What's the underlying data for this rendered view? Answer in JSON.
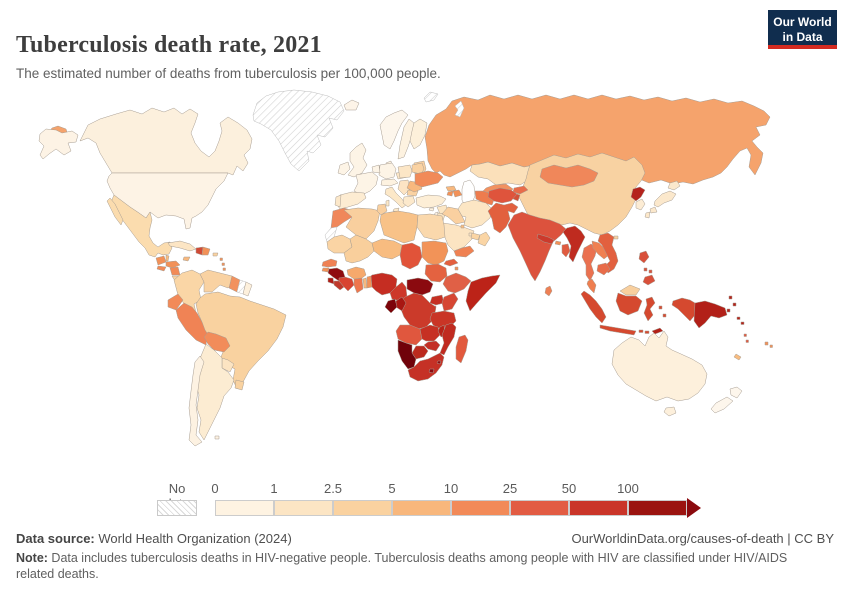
{
  "header": {
    "title": "Tuberculosis death rate, 2021",
    "subtitle": "The estimated number of deaths from tuberculosis per 100,000 people.",
    "logo": {
      "line1": "Our World",
      "line2": "in Data",
      "bg": "#102d4e",
      "accent": "#d42b21"
    }
  },
  "legend": {
    "no_data_label": "No data",
    "ticks": [
      "0",
      "1",
      "2.5",
      "5",
      "10",
      "25",
      "50",
      "100"
    ],
    "colors": [
      "#fef3e2",
      "#fce5c4",
      "#fad2a0",
      "#f8b77c",
      "#f28a58",
      "#e25c43",
      "#ca3529",
      "#9b1410"
    ],
    "arrow_color": "#8b0a0e"
  },
  "footer": {
    "source_label": "Data source:",
    "source_text": " World Health Organization (2024)",
    "credit": "OurWorldinData.org/causes-of-death | CC BY",
    "note_label": "Note:",
    "note_text": " Data includes tuberculosis deaths in HIV-negative people. Tuberculosis deaths among people with HIV are classified under HIV/AIDS related deaths."
  },
  "map": {
    "border_color": "#a79d92",
    "regions": {
      "russia_chukotka": "#f5a36c",
      "alaska": "#fdf3e5",
      "canada": "#fcf0dd",
      "great_lakes": "#ffffff",
      "greenland": "hatch",
      "iceland": "#fdf4e8",
      "svalbard": "hatch",
      "novaya_zemlya": "hatch",
      "usa": "#fdf3e5",
      "mexico": "#fbdcae",
      "baja": "#fbdcae",
      "guatemala": "#f29158",
      "belize": "#f8bc80",
      "honduras": "#f29158",
      "el_salvador": "#f28a56",
      "nicaragua": "#f28a56",
      "costa_rica": "#fad2a0",
      "panama": "#f8b87e",
      "cuba": "#fce5c4",
      "jamaica": "#f8b87e",
      "haiti": "#d04a36",
      "dominican_republic": "#f29158",
      "puerto_rico": "#fad2a0",
      "antilles": "#f29158",
      "colombia": "#fad6a6",
      "venezuela": "#f9d2a2",
      "guyana": "#f2915e",
      "suriname": "hatch",
      "fr_guiana": "#fdf0dc",
      "ecuador": "#f28a58",
      "peru": "#f08355",
      "brazil": "#f9d2a0",
      "bolivia": "#f28c5a",
      "paraguay": "#fce4c2",
      "uruguay": "#f9d2a0",
      "argentina": "#fcecd2",
      "chile": "#fdf2e2",
      "falkland": "#fdf2e2",
      "norway": "#fdf6ec",
      "sweden": "#fdf2e0",
      "finland": "#fdf0da",
      "denmark": "#fdf2e0",
      "baltics": "#f9d0a0",
      "uk": "#fdf4e6",
      "ireland": "#fdf4e6",
      "germany": "#fdf4e6",
      "benelux": "#fdf4e6",
      "france": "#fdf4e6",
      "swiss_austria": "#fdf2e0",
      "czech_slovak": "#fce6c6",
      "poland": "#fce6c6",
      "spain": "#fdecd2",
      "portugal": "#fce8ca",
      "italy": "#fce8c8",
      "sicily": "#fce8c8",
      "sardinia": "#fce8c8",
      "balkans": "#fce4c4",
      "bulgaria": "#fad2a2",
      "greece": "#fce9cc",
      "romania": "#f8b87e",
      "belarus": "#fad2a2",
      "ukraine": "#f18a58",
      "russia": "#f5a36c",
      "kazakhstan": "#fbe0ba",
      "caspian": "#ffffff",
      "uzbekistan": "#f29160",
      "turkmenistan": "#ee7c4e",
      "kyrgyzstan": "#e86c4a",
      "tajikistan": "#d55038",
      "georgia": "#f8b87e",
      "armenia": "#f29158",
      "azerbaijan": "#f29158",
      "turkey": "#fdeed6",
      "syria": "#fce6c4",
      "cyprus": "#fdf2e0",
      "israel": "#fdf2e4",
      "jordan": "#fce6c4",
      "iraq": "#fad0a0",
      "iran": "#fce6c4",
      "saudi": "#fce4c2",
      "kuwait": "#f8bc80",
      "qatar": "#fce4c2",
      "uae": "#fad5a5",
      "oman": "#fad5a5",
      "yemen": "#ef8152",
      "morocco": "#f0875a",
      "w_sahara": "hatch",
      "algeria": "#f9cf9e",
      "tunisia": "#f9cf9e",
      "libya": "#f8c288",
      "egypt": "#fad8ac",
      "mauritania": "#fad4a4",
      "mali": "#f9cf9c",
      "niger": "#f8bc80",
      "chad": "#e15339",
      "sudan": "#f29358",
      "eritrea": "#e4603f",
      "djibouti": "#f29158",
      "senegal": "#ef8154",
      "guinea_bissau": "#f29158",
      "guinea": "#8f0c0f",
      "sierra_leone": "#b01b15",
      "liberia": "#c0392b",
      "cote_divoire": "#d84431",
      "ghana": "#ee764d",
      "burkina": "#f6a96c",
      "togo": "#f8b87e",
      "benin": "#f29158",
      "nigeria": "#c52d22",
      "cameroon": "#cd382a",
      "car": "#8b0a0f",
      "south_sudan": "#e46240",
      "ethiopia": "#e06046",
      "somalia": "#bc2318",
      "uganda": "#c63023",
      "kenya": "#d64733",
      "rwanda_burundi": "#b5231d",
      "drc": "#cb3a2a",
      "congo": "#a81712",
      "gabon": "#7c040a",
      "tanzania": "#c93526",
      "angola": "#e0573e",
      "zambia": "#c63023",
      "malawi": "#b82217",
      "mozambique": "#c02b20",
      "zimbabwe": "#c33026",
      "botswana": "#bc2a1e",
      "namibia": "#70020a",
      "south_africa": "#c53126",
      "lesotho": "#8b0a0f",
      "eswatini": "#8b0a0f",
      "madagascar": "#e2593d",
      "afghanistan": "#df543c",
      "pakistan": "#e2603e",
      "india": "#dc523d",
      "nepal": "#cc3a2c",
      "bhutan": "#f29158",
      "bangladesh": "#e05b40",
      "sri_lanka": "#ee8055",
      "china": "#f8d2a2",
      "mongolia": "#f0875a",
      "taiwan": "#fce8ca",
      "hainan": "#f8d2a2",
      "north_korea": "#b5231d",
      "south_korea": "#fcecd4",
      "japan_hokkaido": "#fbe8cc",
      "japan_honshu": "#fbe8cc",
      "japan_kyushu": "#fbe8cc",
      "myanmar": "#bf2b1f",
      "thailand": "#ea7150",
      "laos": "#f08052",
      "vietnam": "#e2603f",
      "cambodia": "#e86c4a",
      "malaysia_pen": "#ef7e4f",
      "malaysia_borneo": "#f8cf9e",
      "sumatra": "#d5492f",
      "java": "#d5492f",
      "kalimantan": "#d5492f",
      "sulawesi": "#d5492f",
      "moluccas": "#d5492f",
      "lesser_sunda": "#d5492f",
      "timor": "#b22018",
      "west_papua": "#d5492f",
      "png": "#b22018",
      "png_islands": "#b22018",
      "solomons": "#b22018",
      "vanuatu": "#e0573e",
      "fiji": "#f29158",
      "new_caledonia": "#f8bc80",
      "philippines_luzon": "#d8503a",
      "philippines_visayas": "#d8503a",
      "philippines_mindanao": "#d8503a",
      "australia": "#fdf0dc",
      "tasmania": "#fdf0dc",
      "nz_north": "#fdf6ec",
      "nz_south": "#fdf6ec"
    }
  }
}
